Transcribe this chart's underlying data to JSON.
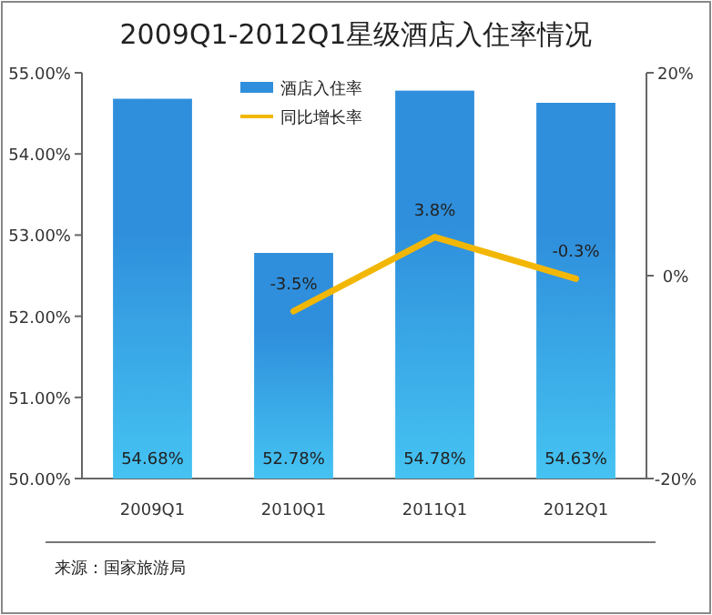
{
  "chart_data": {
    "type": "bar",
    "title": "2009Q1-2012Q1星级酒店入住率情况",
    "categories": [
      "2009Q1",
      "2010Q1",
      "2011Q1",
      "2012Q1"
    ],
    "series": [
      {
        "name": "酒店入住率",
        "color": "#2f8fdc",
        "values": [
          54.68,
          52.78,
          54.78,
          54.63
        ],
        "value_labels": [
          "54.68%",
          "52.78%",
          "54.78%",
          "54.63%"
        ]
      },
      {
        "name": "同比增长率",
        "type": "line",
        "axis": "y2",
        "color": "#f2b705",
        "values": [
          null,
          -3.5,
          3.8,
          -0.3
        ],
        "value_labels": [
          null,
          "-3.5%",
          "3.8%",
          "-0.3%"
        ]
      }
    ],
    "ylim": [
      50,
      55
    ],
    "yticks": [
      {
        "value": 50,
        "label": "50.00%"
      },
      {
        "value": 51,
        "label": "51.00%"
      },
      {
        "value": 52,
        "label": "52.00%"
      },
      {
        "value": 53,
        "label": "53.00%"
      },
      {
        "value": 54,
        "label": "54.00%"
      },
      {
        "value": 55,
        "label": "55.00%"
      }
    ],
    "y2lim": [
      -20,
      20
    ],
    "y2ticks": [
      {
        "value": -20,
        "label": "-20%"
      },
      {
        "value": 0,
        "label": "0%"
      },
      {
        "value": 20,
        "label": "20%"
      }
    ],
    "legend": "top",
    "annotations": [
      "来源：国家旅游局"
    ]
  }
}
